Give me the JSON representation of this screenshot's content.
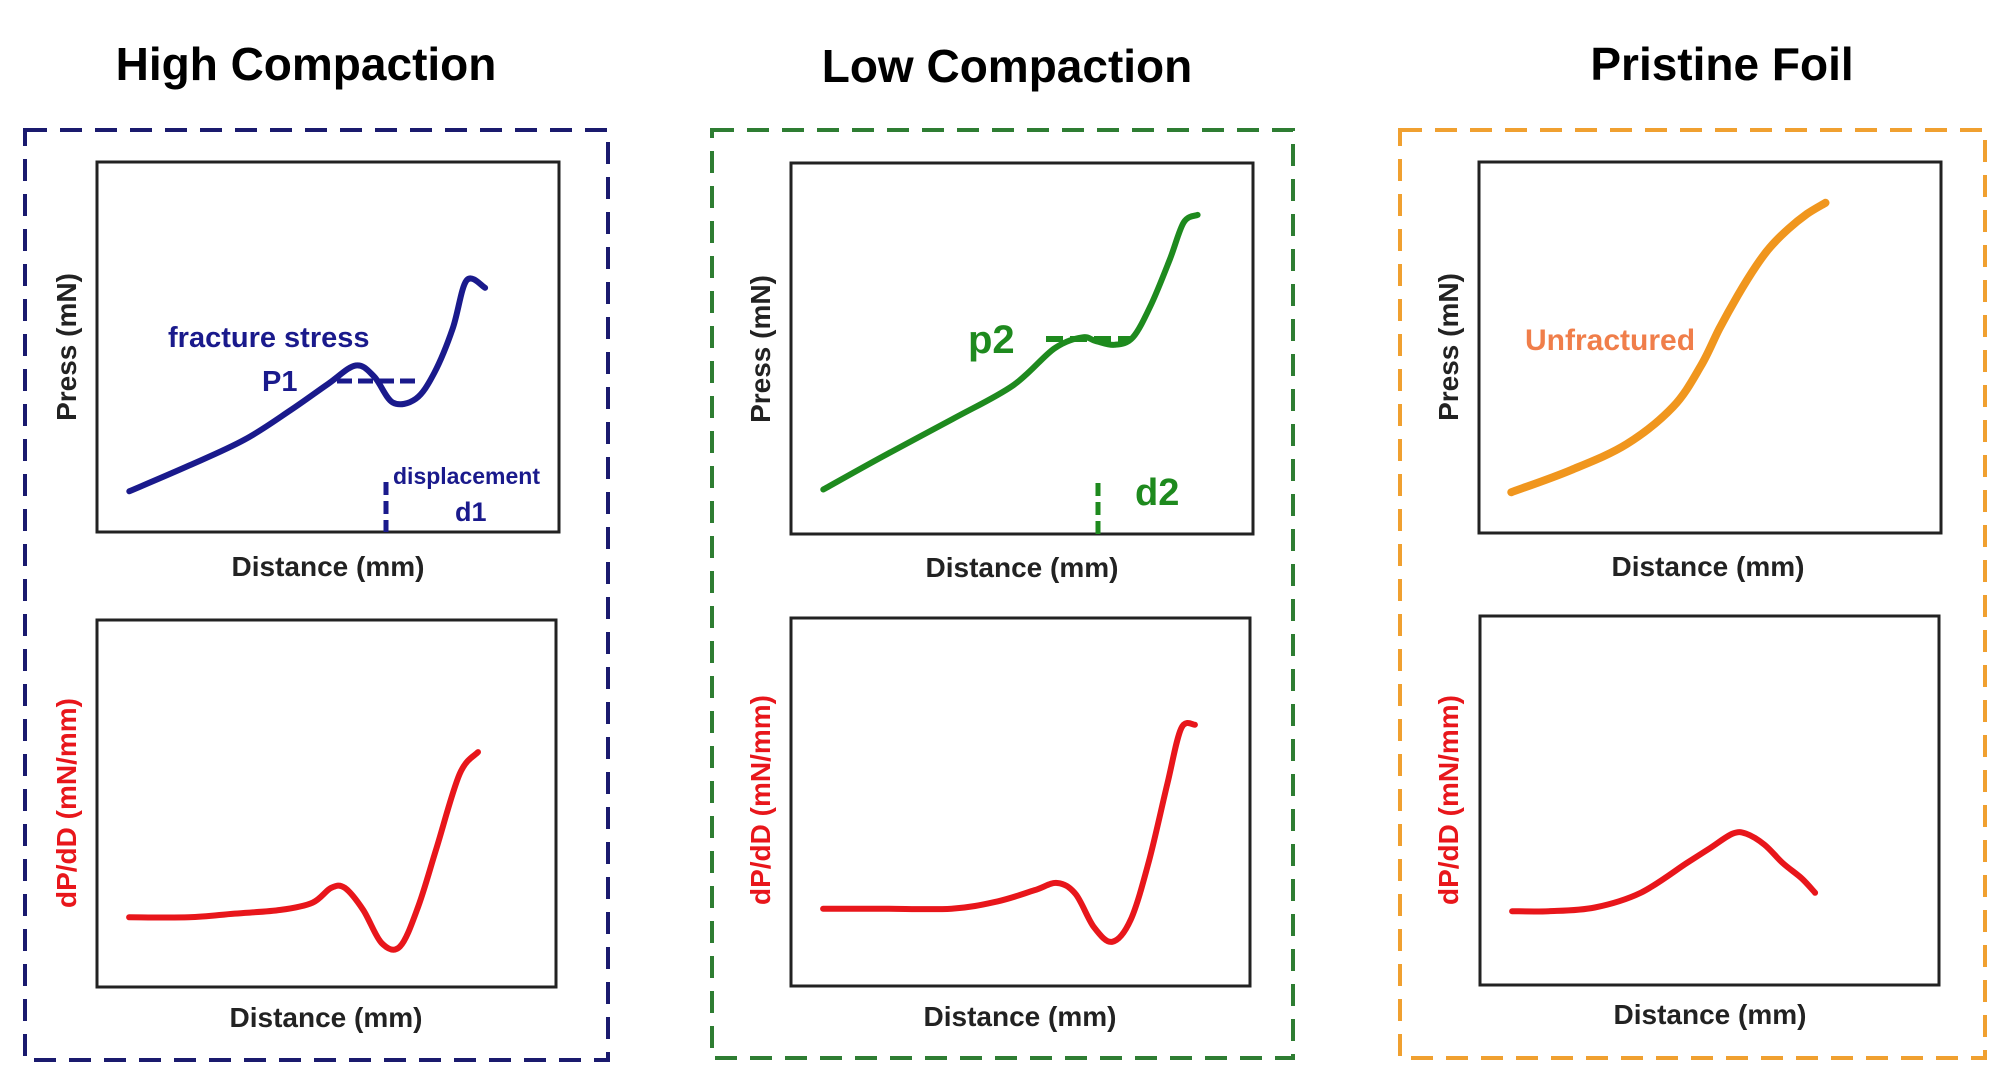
{
  "colors": {
    "high": "#1a1a8c",
    "high_border": "#1a1a6e",
    "low": "#1e8a1e",
    "low_border": "#2e7d32",
    "pristine": "#f0961e",
    "pristine_border": "#f0a030",
    "pristine_label": "#f07e4a",
    "derivative": "#e8161b",
    "axis_text": "#222222"
  },
  "groups": [
    {
      "id": "high",
      "title": "High Compaction",
      "press_ylabel": "Press (mN)",
      "deriv_ylabel": "dP/dD (mN/mm)",
      "press_xlabel": "Distance (mm)",
      "deriv_xlabel": "Distance (mm)",
      "annotations": [
        "fracture stress",
        "P1",
        "displacement",
        "d1"
      ]
    },
    {
      "id": "low",
      "title": "Low Compaction",
      "press_ylabel": "Press (mN)",
      "deriv_ylabel": "dP/dD (mN/mm)",
      "press_xlabel": "Distance (mm)",
      "deriv_xlabel": "Distance (mm)",
      "annotations": [
        "p2",
        "d2"
      ]
    },
    {
      "id": "pristine",
      "title": "Pristine Foil",
      "press_ylabel": "Press (mN)",
      "deriv_ylabel": "dP/dD (mN/mm)",
      "press_xlabel": "Distance (mm)",
      "deriv_xlabel": "Distance (mm)",
      "annotations": [
        "Unfractured"
      ]
    }
  ],
  "chart_data": [
    {
      "type": "line",
      "group": "High Compaction",
      "panel": "press",
      "xlabel": "Distance (mm)",
      "ylabel": "Press (mN)",
      "xlim": [
        0,
        1
      ],
      "ylim": [
        0,
        1
      ],
      "grid": false,
      "series": [
        {
          "x": [
            0.07,
            0.2,
            0.32,
            0.42,
            0.5,
            0.56,
            0.6,
            0.64,
            0.69,
            0.73,
            0.77,
            0.8,
            0.84
          ],
          "y": [
            0.11,
            0.18,
            0.25,
            0.33,
            0.4,
            0.45,
            0.42,
            0.35,
            0.36,
            0.43,
            0.55,
            0.68,
            0.66
          ]
        }
      ],
      "annotations": [
        "fracture stress",
        "P1",
        "displacement",
        "d1"
      ]
    },
    {
      "type": "line",
      "group": "High Compaction",
      "panel": "derivative",
      "xlabel": "Distance (mm)",
      "ylabel": "dP/dD (mN/mm)",
      "xlim": [
        0,
        1
      ],
      "ylim": [
        0,
        1
      ],
      "grid": false,
      "series": [
        {
          "x": [
            0.07,
            0.2,
            0.3,
            0.4,
            0.47,
            0.51,
            0.54,
            0.58,
            0.62,
            0.66,
            0.7,
            0.74,
            0.79,
            0.83
          ],
          "y": [
            0.19,
            0.19,
            0.2,
            0.21,
            0.23,
            0.27,
            0.27,
            0.21,
            0.12,
            0.11,
            0.22,
            0.38,
            0.58,
            0.64
          ]
        }
      ]
    },
    {
      "type": "line",
      "group": "Low Compaction",
      "panel": "press",
      "xlabel": "Distance (mm)",
      "ylabel": "Press (mN)",
      "xlim": [
        0,
        1
      ],
      "ylim": [
        0,
        1
      ],
      "grid": false,
      "series": [
        {
          "x": [
            0.07,
            0.2,
            0.35,
            0.48,
            0.57,
            0.63,
            0.66,
            0.7,
            0.74,
            0.78,
            0.82,
            0.85,
            0.88
          ],
          "y": [
            0.12,
            0.21,
            0.31,
            0.4,
            0.5,
            0.53,
            0.52,
            0.51,
            0.53,
            0.62,
            0.74,
            0.84,
            0.86
          ]
        }
      ],
      "annotations": [
        "p2",
        "d2"
      ]
    },
    {
      "type": "line",
      "group": "Low Compaction",
      "panel": "derivative",
      "xlabel": "Distance (mm)",
      "ylabel": "dP/dD (mN/mm)",
      "xlim": [
        0,
        1
      ],
      "ylim": [
        0,
        1
      ],
      "grid": false,
      "series": [
        {
          "x": [
            0.07,
            0.2,
            0.35,
            0.45,
            0.53,
            0.58,
            0.62,
            0.66,
            0.7,
            0.74,
            0.78,
            0.82,
            0.85,
            0.88
          ],
          "y": [
            0.21,
            0.21,
            0.21,
            0.23,
            0.26,
            0.28,
            0.25,
            0.16,
            0.12,
            0.18,
            0.34,
            0.55,
            0.7,
            0.71
          ]
        }
      ]
    },
    {
      "type": "line",
      "group": "Pristine Foil",
      "panel": "press",
      "xlabel": "Distance (mm)",
      "ylabel": "Press (mN)",
      "xlim": [
        0,
        1
      ],
      "ylim": [
        0,
        1
      ],
      "grid": false,
      "series": [
        {
          "x": [
            0.07,
            0.2,
            0.32,
            0.42,
            0.48,
            0.52,
            0.56,
            0.6,
            0.63,
            0.67,
            0.71,
            0.75
          ],
          "y": [
            0.11,
            0.17,
            0.24,
            0.34,
            0.45,
            0.55,
            0.64,
            0.72,
            0.77,
            0.82,
            0.86,
            0.89
          ]
        }
      ],
      "annotations": [
        "Unfractured"
      ]
    },
    {
      "type": "line",
      "group": "Pristine Foil",
      "panel": "derivative",
      "xlabel": "Distance (mm)",
      "ylabel": "dP/dD (mN/mm)",
      "xlim": [
        0,
        1
      ],
      "ylim": [
        0,
        1
      ],
      "grid": false,
      "series": [
        {
          "x": [
            0.07,
            0.15,
            0.25,
            0.35,
            0.45,
            0.5,
            0.55,
            0.58,
            0.62,
            0.66,
            0.7,
            0.73
          ],
          "y": [
            0.2,
            0.2,
            0.21,
            0.25,
            0.33,
            0.37,
            0.41,
            0.41,
            0.38,
            0.33,
            0.29,
            0.25
          ]
        }
      ]
    }
  ]
}
